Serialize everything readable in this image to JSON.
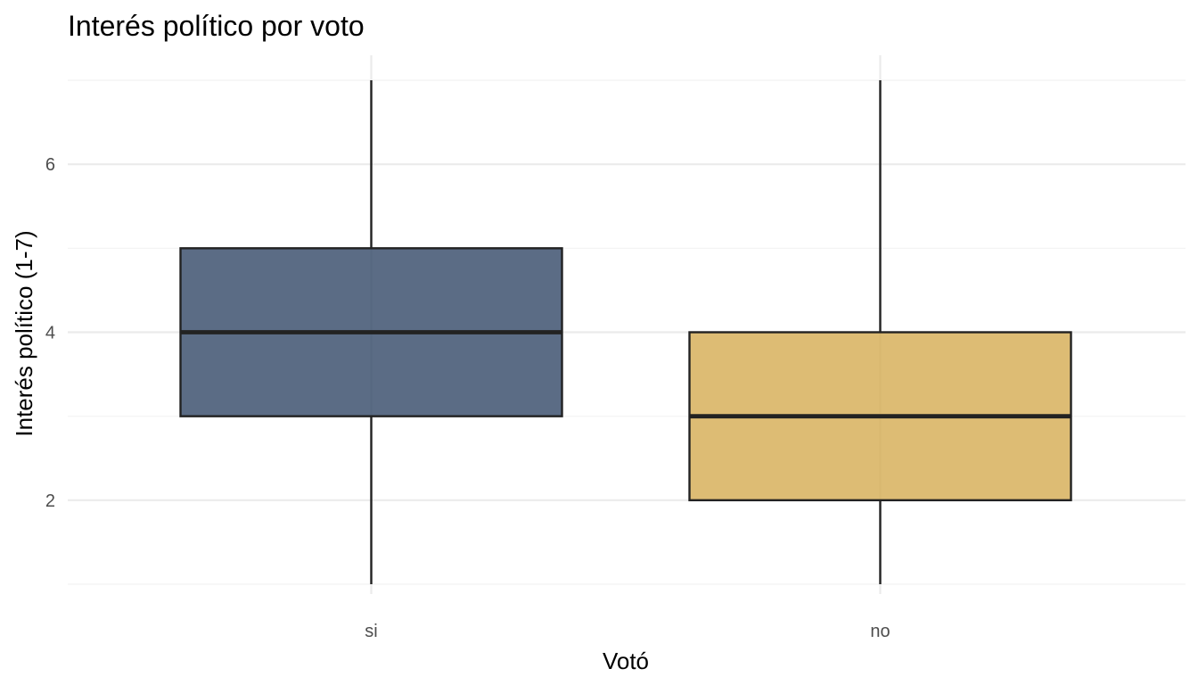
{
  "chart_data": {
    "type": "boxplot",
    "title": "Interés político por voto",
    "xlabel": "Votó",
    "ylabel": "Interés político (1-7)",
    "categories": [
      "si",
      "no"
    ],
    "series": [
      {
        "category": "si",
        "min": 1,
        "q1": 3,
        "median": 4,
        "q3": 5,
        "max": 7,
        "color": "#2d4263"
      },
      {
        "category": "no",
        "min": 1,
        "q1": 2,
        "median": 3,
        "q3": 4,
        "max": 7,
        "color": "#d4a94d"
      }
    ],
    "fill_opacity": 0.78,
    "ylim": [
      1,
      7
    ],
    "y_ticks": [
      2,
      4,
      6
    ],
    "y_tick_labels": [
      "2",
      "4",
      "6"
    ],
    "y_minor_ticks": [
      1,
      3,
      5,
      7
    ],
    "grid": true,
    "legend": "none"
  }
}
